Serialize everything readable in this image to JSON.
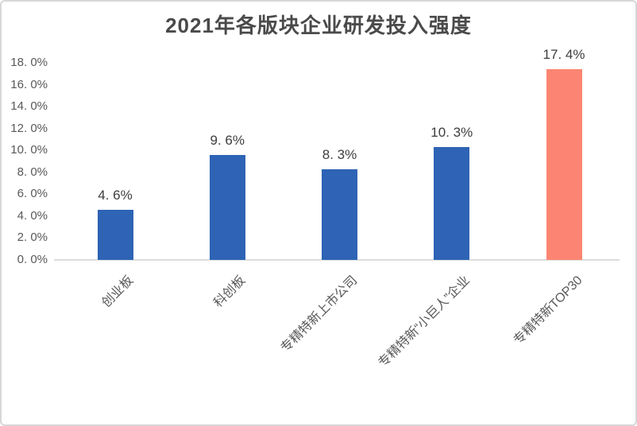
{
  "chart_data": {
    "type": "bar",
    "title": "2021年各版块企业研发投入强度",
    "categories": [
      "创业板",
      "科创板",
      "专精特新上市公司",
      "专精特新“小巨人”企业",
      "专精特新TOP30"
    ],
    "values": [
      4.6,
      9.6,
      8.3,
      10.3,
      17.4
    ],
    "value_labels": [
      "4. 6%",
      "9. 6%",
      "8. 3%",
      "10. 3%",
      "17. 4%"
    ],
    "ytick_values": [
      0,
      2,
      4,
      6,
      8,
      10,
      12,
      14,
      16,
      18
    ],
    "ytick_labels": [
      "0. 0%",
      "2. 0%",
      "4. 0%",
      "6. 0%",
      "8. 0%",
      "10. 0%",
      "12. 0%",
      "14. 0%",
      "16. 0%",
      "18. 0%"
    ],
    "ylim": [
      0,
      18
    ],
    "xlabel": "",
    "ylabel": "",
    "grid": false,
    "legend": false,
    "bar_colors": [
      "#2e63b5",
      "#2e63b5",
      "#2e63b5",
      "#2e63b5",
      "#fb8572"
    ],
    "bar_color_default": "#2e63b5",
    "bar_color_highlight": "#fb8572",
    "axis_line_color": "#dcdcdc",
    "title_color": "#4a4a4a",
    "tick_label_color": "#595959",
    "value_label_color": "#3d3d3d"
  }
}
